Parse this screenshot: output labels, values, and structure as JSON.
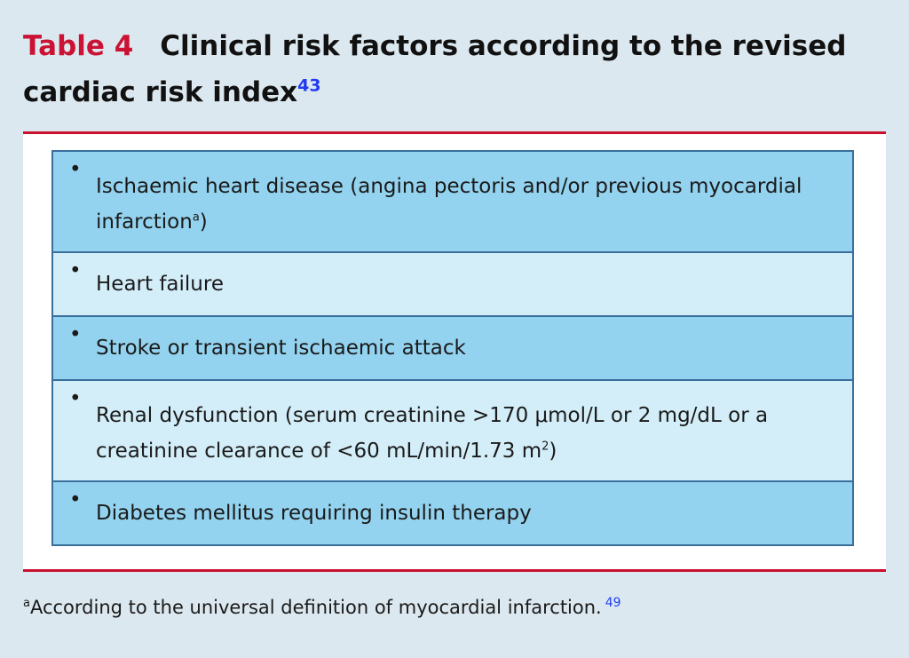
{
  "header": {
    "table_label": "Table 4",
    "title": "Clinical risk factors according to the revised cardiac risk index",
    "title_reference": "43"
  },
  "table": {
    "rows": [
      {
        "text": "Ischaemic heart disease (angina pectoris and/or previous myocardial infarction",
        "superscript": "a",
        "suffix": ")"
      },
      {
        "text": "Heart failure",
        "superscript": "",
        "suffix": ""
      },
      {
        "text": "Stroke or transient ischaemic attack",
        "superscript": "",
        "suffix": ""
      },
      {
        "text": "Renal dysfunction (serum creatinine >170 μmol/L or 2 mg/dL or a creatinine clearance of <60 mL/min/1.73 m",
        "superscript": "2",
        "suffix": ")"
      },
      {
        "text": "Diabetes mellitus requiring insulin therapy",
        "superscript": "",
        "suffix": ""
      }
    ],
    "bullet": "•"
  },
  "footnote": {
    "marker": "a",
    "text": "According to the universal definition of myocardial infarction.",
    "reference": "49"
  },
  "colors": {
    "accent_red": "#c8102e",
    "row_dark": "#93d3ef",
    "row_light": "#d3eef9",
    "reference_blue": "#1f3cf0"
  }
}
